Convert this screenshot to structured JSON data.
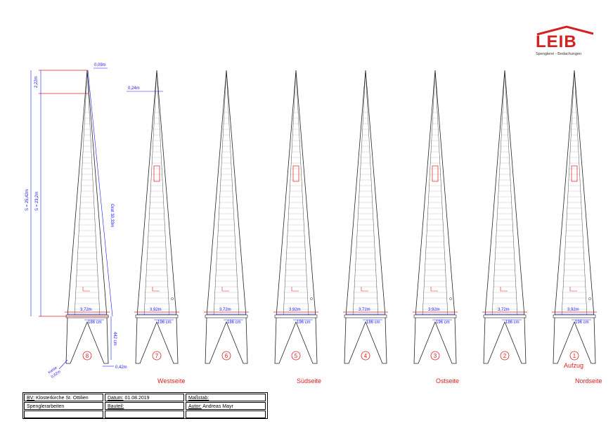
{
  "logo": {
    "word": "LEIB",
    "subtitle": "Spenglerei - Bedachungen",
    "color": "#d4201f"
  },
  "spires": [
    {
      "number": "8",
      "width_label": "3,72m",
      "inner_label": "186 cm",
      "side_label": ""
    },
    {
      "number": "7",
      "width_label": "3,92m",
      "inner_label": "196 cm",
      "side_label": "Westseite"
    },
    {
      "number": "6",
      "width_label": "3,72m",
      "inner_label": "186 cm",
      "side_label": ""
    },
    {
      "number": "5",
      "width_label": "3,92m",
      "inner_label": "196 cm",
      "side_label": "Südseite"
    },
    {
      "number": "4",
      "width_label": "3,72m",
      "inner_label": "186 cm",
      "side_label": ""
    },
    {
      "number": "3",
      "width_label": "3,92m",
      "inner_label": "196 cm",
      "side_label": "Ostseite"
    },
    {
      "number": "2",
      "width_label": "3,72m",
      "inner_label": "186 cm",
      "side_label": ""
    },
    {
      "number": "1",
      "width_label": "3,92m",
      "inner_label": "196 cm",
      "side_label": "Nordseite"
    }
  ],
  "dimensions": {
    "top_width": "0,09m",
    "tip_height": "2,22m",
    "total_height": "S = 25,42m",
    "main_height": "S = 23,2m",
    "grat": "Grat 30,33m",
    "base_height": "442 cm",
    "base_offset": "0,42m",
    "kehle": "Kehle",
    "kehle_len": "0,62m",
    "second_top": "0,24m"
  },
  "aufzug": "Aufzug",
  "title_block": {
    "bv_label": "BV:",
    "bv_value": "Klosterkirche St. Ottilien",
    "datum_label": "Datum:",
    "datum_value": "01.08.2019",
    "massstab_label": "Maßstab:",
    "massstab_value": "",
    "work": "Spenglerarbeiten",
    "bauteil_label": "Bauteil:",
    "bauteil_value": "",
    "autor_label": "Autor:",
    "autor_value": "Andreas Mayr"
  },
  "colors": {
    "red": "#e02020",
    "blue": "#1a1aff",
    "line": "#222222",
    "brick": "#c8c8c8"
  }
}
